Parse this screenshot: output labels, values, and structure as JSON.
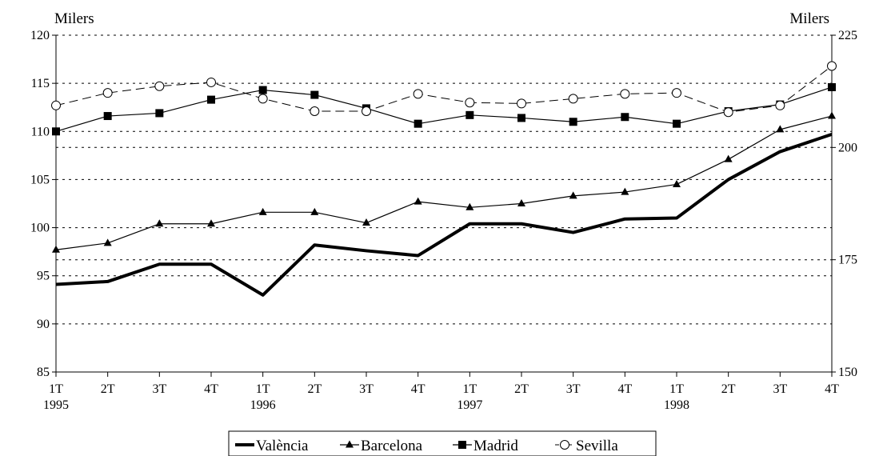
{
  "chart_data": {
    "type": "line",
    "left_unit": "Milers",
    "right_unit": "Milers",
    "x": [
      "1T",
      "2T",
      "3T",
      "4T",
      "1T",
      "2T",
      "3T",
      "4T",
      "1T",
      "2T",
      "3T",
      "4T",
      "1T",
      "2T",
      "3T",
      "4T"
    ],
    "years": [
      {
        "label": "1995",
        "index": 0
      },
      {
        "label": "1996",
        "index": 4
      },
      {
        "label": "1997",
        "index": 8
      },
      {
        "label": "1998",
        "index": 12
      }
    ],
    "ylim": [
      85,
      120
    ],
    "yticks": [
      85,
      90,
      95,
      100,
      105,
      110,
      115,
      120
    ],
    "y2lim": [
      150,
      225
    ],
    "y2ticks": [
      150,
      175,
      200,
      225
    ],
    "grid": true,
    "series": [
      {
        "name": "València",
        "axis": "left",
        "marker": "none",
        "style": "thick",
        "values": [
          94.1,
          94.4,
          96.2,
          96.2,
          93.0,
          98.2,
          97.6,
          97.1,
          100.4,
          100.4,
          99.5,
          100.9,
          101.0,
          105.0,
          107.9,
          109.7
        ]
      },
      {
        "name": "Barcelona",
        "axis": "left",
        "marker": "triangle",
        "style": "thin",
        "values": [
          97.7,
          98.4,
          100.4,
          100.4,
          101.6,
          101.6,
          100.5,
          102.7,
          102.1,
          102.5,
          103.3,
          103.7,
          104.5,
          107.1,
          110.2,
          111.6
        ]
      },
      {
        "name": "Madrid",
        "axis": "left",
        "marker": "square",
        "style": "thin",
        "values": [
          110.0,
          111.6,
          111.9,
          113.3,
          114.3,
          113.8,
          112.4,
          110.8,
          111.7,
          111.4,
          111.0,
          111.5,
          110.8,
          112.1,
          112.8,
          114.6
        ]
      },
      {
        "name": "Sevilla",
        "axis": "left",
        "marker": "circle",
        "style": "dashed",
        "values": [
          112.7,
          114.0,
          114.7,
          115.1,
          113.4,
          112.1,
          112.1,
          113.9,
          113.0,
          112.9,
          113.4,
          113.9,
          114.0,
          112.0,
          112.7,
          116.8
        ]
      }
    ]
  }
}
